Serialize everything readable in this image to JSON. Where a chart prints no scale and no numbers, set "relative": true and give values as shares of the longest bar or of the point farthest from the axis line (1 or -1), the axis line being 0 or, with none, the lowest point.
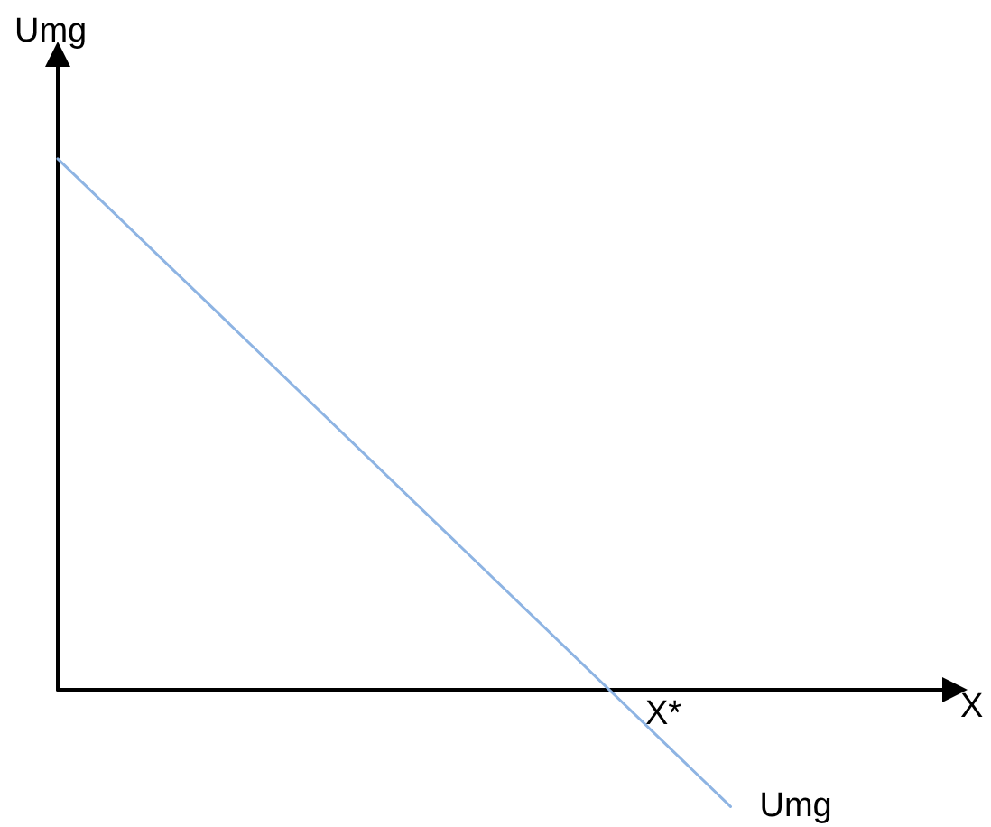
{
  "chart_data": {
    "type": "line",
    "relative": true,
    "xlabel": "X",
    "ylabel": "Umg",
    "categories": [
      null,
      null
    ],
    "series": [
      {
        "name": "Umg",
        "color": "#8eb4e3",
        "values": [
          1,
          -0.22
        ]
      }
    ],
    "annotations": [
      "X*"
    ]
  }
}
